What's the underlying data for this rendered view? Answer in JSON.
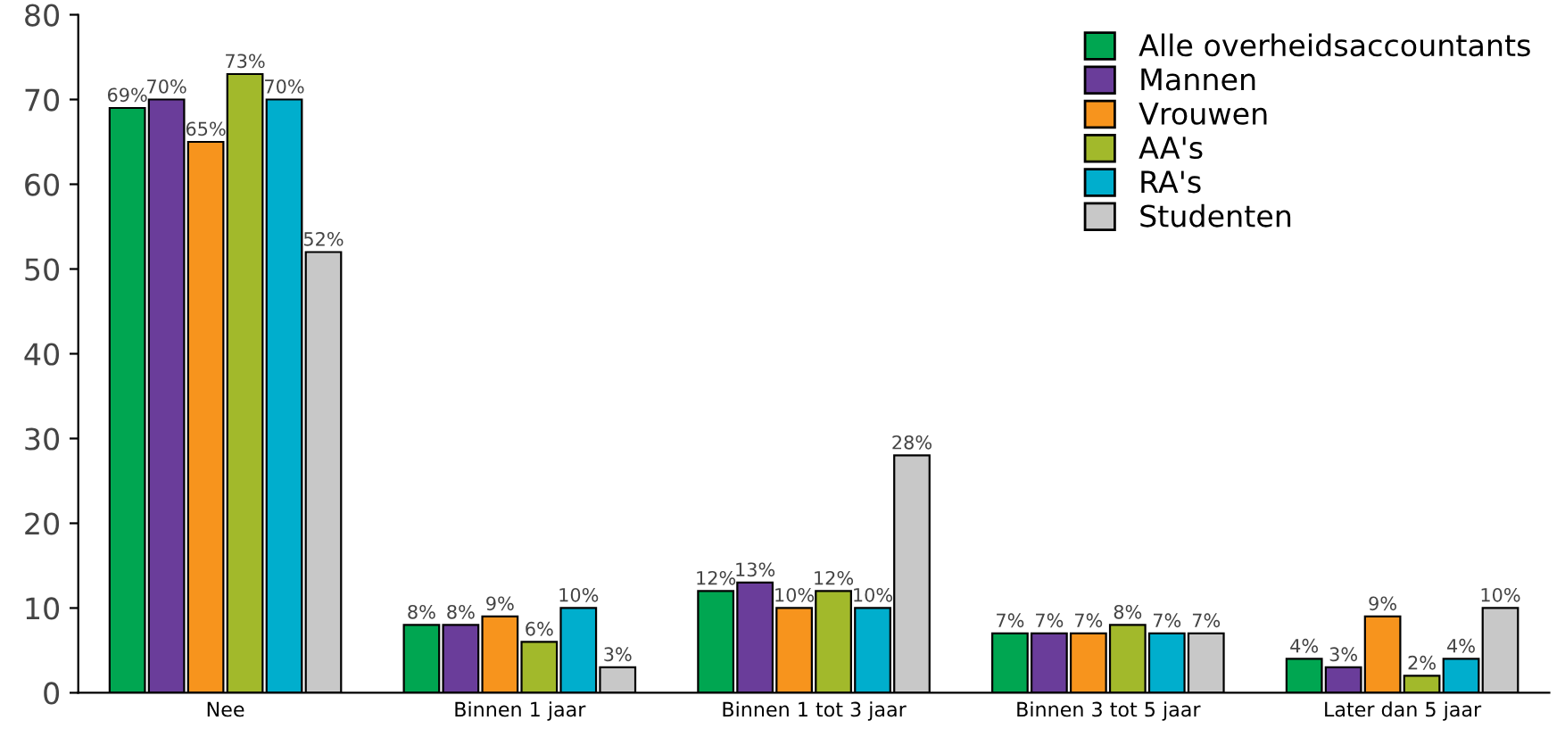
{
  "chart_data": {
    "type": "bar",
    "categories": [
      "Nee",
      "Binnen 1 jaar",
      "Binnen 1 tot 3 jaar",
      "Binnen 3 tot 5 jaar",
      "Later dan 5 jaar"
    ],
    "series": [
      {
        "name": "Alle overheidsaccountants",
        "color": "#00a651",
        "values": [
          69,
          8,
          12,
          7,
          4
        ],
        "value_labels": [
          "69%",
          "8%",
          "12%",
          "7%",
          "4%"
        ]
      },
      {
        "name": "Mannen",
        "color": "#6a3d9a",
        "values": [
          70,
          8,
          13,
          7,
          3
        ],
        "value_labels": [
          "70%",
          "8%",
          "13%",
          "7%",
          "3%"
        ]
      },
      {
        "name": "Vrouwen",
        "color": "#f7941d",
        "values": [
          65,
          9,
          10,
          7,
          9
        ],
        "value_labels": [
          "65%",
          "9%",
          "10%",
          "7%",
          "9%"
        ]
      },
      {
        "name": "AA's",
        "color": "#a2b92b",
        "values": [
          73,
          6,
          12,
          8,
          2
        ],
        "value_labels": [
          "73%",
          "6%",
          "12%",
          "8%",
          "2%"
        ]
      },
      {
        "name": "RA's",
        "color": "#00aecd",
        "values": [
          70,
          10,
          10,
          7,
          4
        ],
        "value_labels": [
          "70%",
          "10%",
          "10%",
          "7%",
          "4%"
        ]
      },
      {
        "name": "Studenten",
        "color": "#c8c8c8",
        "values": [
          52,
          3,
          28,
          7,
          10
        ],
        "value_labels": [
          "52%",
          "3%",
          "28%",
          "7%",
          "10%"
        ]
      }
    ],
    "ylim": [
      0,
      80
    ],
    "yticks": [
      0,
      10,
      20,
      30,
      40,
      50,
      60,
      70,
      80
    ],
    "grid": false,
    "legend": "top right"
  }
}
